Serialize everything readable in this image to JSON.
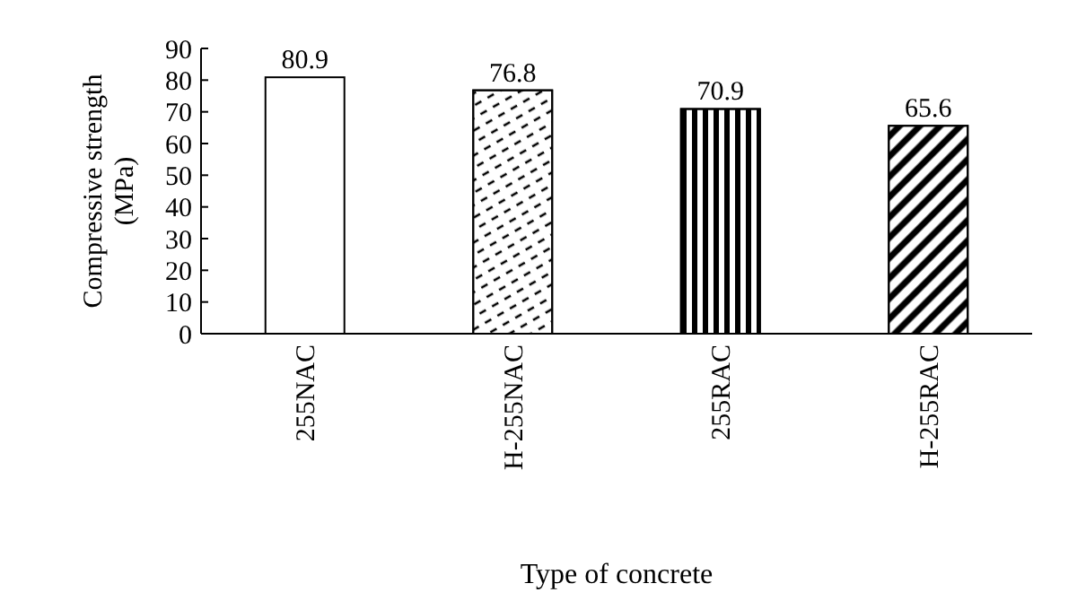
{
  "chart_data": {
    "type": "bar",
    "xlabel": "Type of concrete",
    "ylabel": "Compressive strength (MPa)",
    "categories": [
      "255NAC",
      "H-255NAC",
      "255RAC",
      "H-255RAC"
    ],
    "values": [
      80.9,
      76.8,
      70.9,
      65.6
    ],
    "colors": [
      "#ffffff",
      "#ffffff",
      "#ffffff",
      "#ffffff"
    ],
    "ylim": [
      0,
      90
    ],
    "yticks": [
      0,
      10,
      20,
      30,
      40,
      50,
      60,
      70,
      80,
      90
    ],
    "data_labels": true,
    "grid": false
  }
}
